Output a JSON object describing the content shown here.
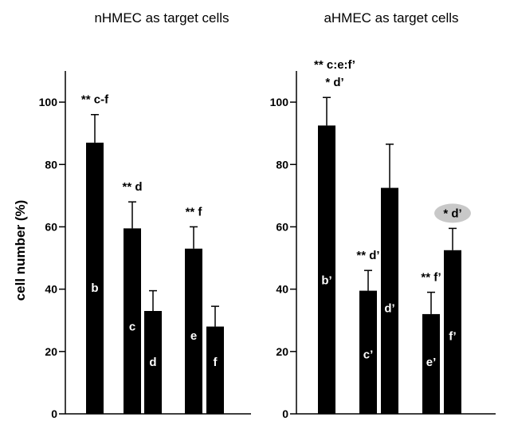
{
  "chart_data": [
    {
      "type": "bar",
      "title": "nHMEC as target cells",
      "ylabel": "cell number (%)",
      "ylim": [
        0,
        110
      ],
      "yticks": [
        "0",
        "20",
        "40",
        "60",
        "80",
        "100"
      ],
      "grid": false,
      "bars": [
        {
          "label": "b",
          "value": 87,
          "error": 9,
          "annotation": [
            "** c-f"
          ]
        },
        {
          "label": "c",
          "value": 59.5,
          "error": 8.5,
          "annotation": [
            "** d"
          ]
        },
        {
          "label": "d",
          "value": 33,
          "error": 6.5,
          "annotation": []
        },
        {
          "label": "e",
          "value": 53,
          "error": 7,
          "annotation": [
            "** f"
          ]
        },
        {
          "label": "f",
          "value": 28,
          "error": 6.5,
          "annotation": []
        }
      ]
    },
    {
      "type": "bar",
      "title": "aHMEC as target cells",
      "ylabel": "",
      "ylim": [
        0,
        110
      ],
      "yticks": [
        "0",
        "20",
        "40",
        "60",
        "80",
        "100"
      ],
      "grid": false,
      "bars": [
        {
          "label": "b’",
          "value": 92.5,
          "error": 9,
          "annotation": [
            "** c:e:f’",
            "* d’"
          ]
        },
        {
          "label": "c’",
          "value": 39.5,
          "error": 6.5,
          "annotation": [
            "** d’"
          ]
        },
        {
          "label": "d’",
          "value": 72.5,
          "error": 14,
          "annotation": []
        },
        {
          "label": "e’",
          "value": 32,
          "error": 7,
          "annotation": [
            "** f’"
          ]
        },
        {
          "label": "f’",
          "value": 52.5,
          "error": 7,
          "annotation": [
            "* d’"
          ],
          "annotation_highlight": "#c8c8c8"
        }
      ]
    }
  ]
}
